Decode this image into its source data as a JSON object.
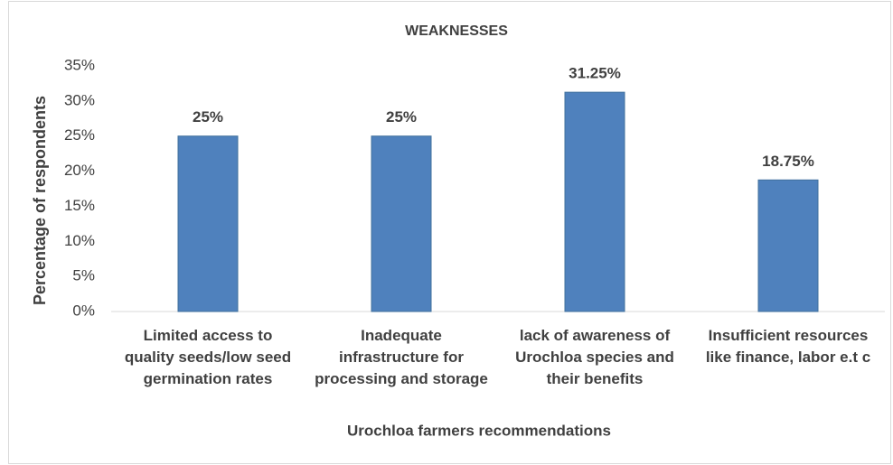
{
  "chart_data": {
    "type": "bar",
    "title": "WEAKNESSES",
    "x_label": "Urochloa farmers recommendations",
    "y_label": "Percentage of respondents",
    "categories": [
      "Limited access to quality seeds/low seed germination rates",
      "Inadequate infrastructure for processing and storage",
      "lack of awareness of Urochloa species and their benefits",
      "Insufficient resources like finance, labor e.t c"
    ],
    "values": [
      25,
      25,
      31.25,
      18.75
    ],
    "value_labels": [
      "25%",
      "25%",
      "31.25%",
      "18.75%"
    ],
    "color": "#4f81bd",
    "ylim": [
      0,
      35
    ],
    "yticks": [
      {
        "value": 0,
        "label": "0%"
      },
      {
        "value": 5,
        "label": "5%"
      },
      {
        "value": 10,
        "label": "10%"
      },
      {
        "value": 15,
        "label": "15%"
      },
      {
        "value": 20,
        "label": "20%"
      },
      {
        "value": 25,
        "label": "25%"
      },
      {
        "value": 30,
        "label": "30%"
      },
      {
        "value": 35,
        "label": "35%"
      }
    ],
    "grid": false
  }
}
